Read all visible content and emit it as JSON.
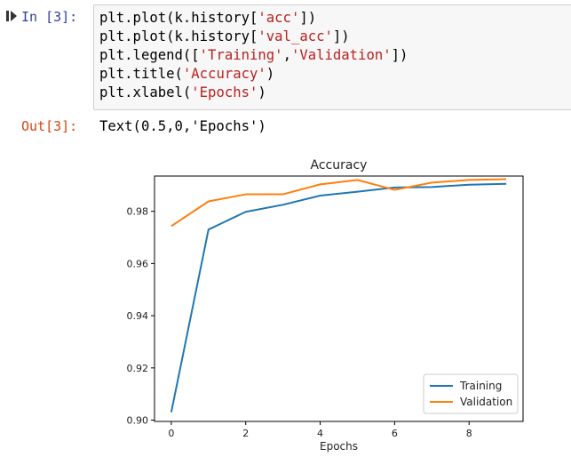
{
  "input_cell": {
    "prompt": "In [3]:",
    "run_icon": "run-cell-icon",
    "lines": [
      {
        "pre": "plt.plot(k.history[",
        "str": "'acc'",
        "post": "])"
      },
      {
        "pre": "plt.plot(k.history[",
        "str": "'val_acc'",
        "post": "])"
      },
      {
        "pre": "plt.legend([",
        "str": "'Training'",
        "mid": ",",
        "str2": "'Validation'",
        "post": "])"
      },
      {
        "pre": "plt.title(",
        "str": "'Accuracy'",
        "post": ")"
      },
      {
        "pre": "plt.xlabel(",
        "str": "'Epochs'",
        "post": ")"
      }
    ]
  },
  "output_cell": {
    "prompt": "Out[3]:",
    "text": "Text(0.5,0,'Epochs')"
  },
  "chart_data": {
    "type": "line",
    "title": "Accuracy",
    "xlabel": "Epochs",
    "ylabel": "",
    "x": [
      0,
      1,
      2,
      3,
      4,
      5,
      6,
      7,
      8,
      9
    ],
    "xlim": [
      -0.45,
      9.45
    ],
    "ylim": [
      0.8995,
      0.9935
    ],
    "xticks": [
      0,
      2,
      4,
      6,
      8
    ],
    "yticks": [
      0.9,
      0.92,
      0.94,
      0.96,
      0.98
    ],
    "xtick_labels": [
      "0",
      "2",
      "4",
      "6",
      "8"
    ],
    "ytick_labels": [
      "0.90",
      "0.92",
      "0.94",
      "0.96",
      "0.98"
    ],
    "legend_position": "lower-right",
    "grid": false,
    "series": [
      {
        "name": "Training",
        "color": "#1f77b4",
        "values": [
          0.903,
          0.973,
          0.9798,
          0.9825,
          0.986,
          0.9875,
          0.9891,
          0.9893,
          0.9902,
          0.9905
        ]
      },
      {
        "name": "Validation",
        "color": "#ff7f0e",
        "values": [
          0.9743,
          0.9838,
          0.9865,
          0.9865,
          0.9903,
          0.992,
          0.9882,
          0.991,
          0.992,
          0.9923
        ]
      }
    ]
  }
}
